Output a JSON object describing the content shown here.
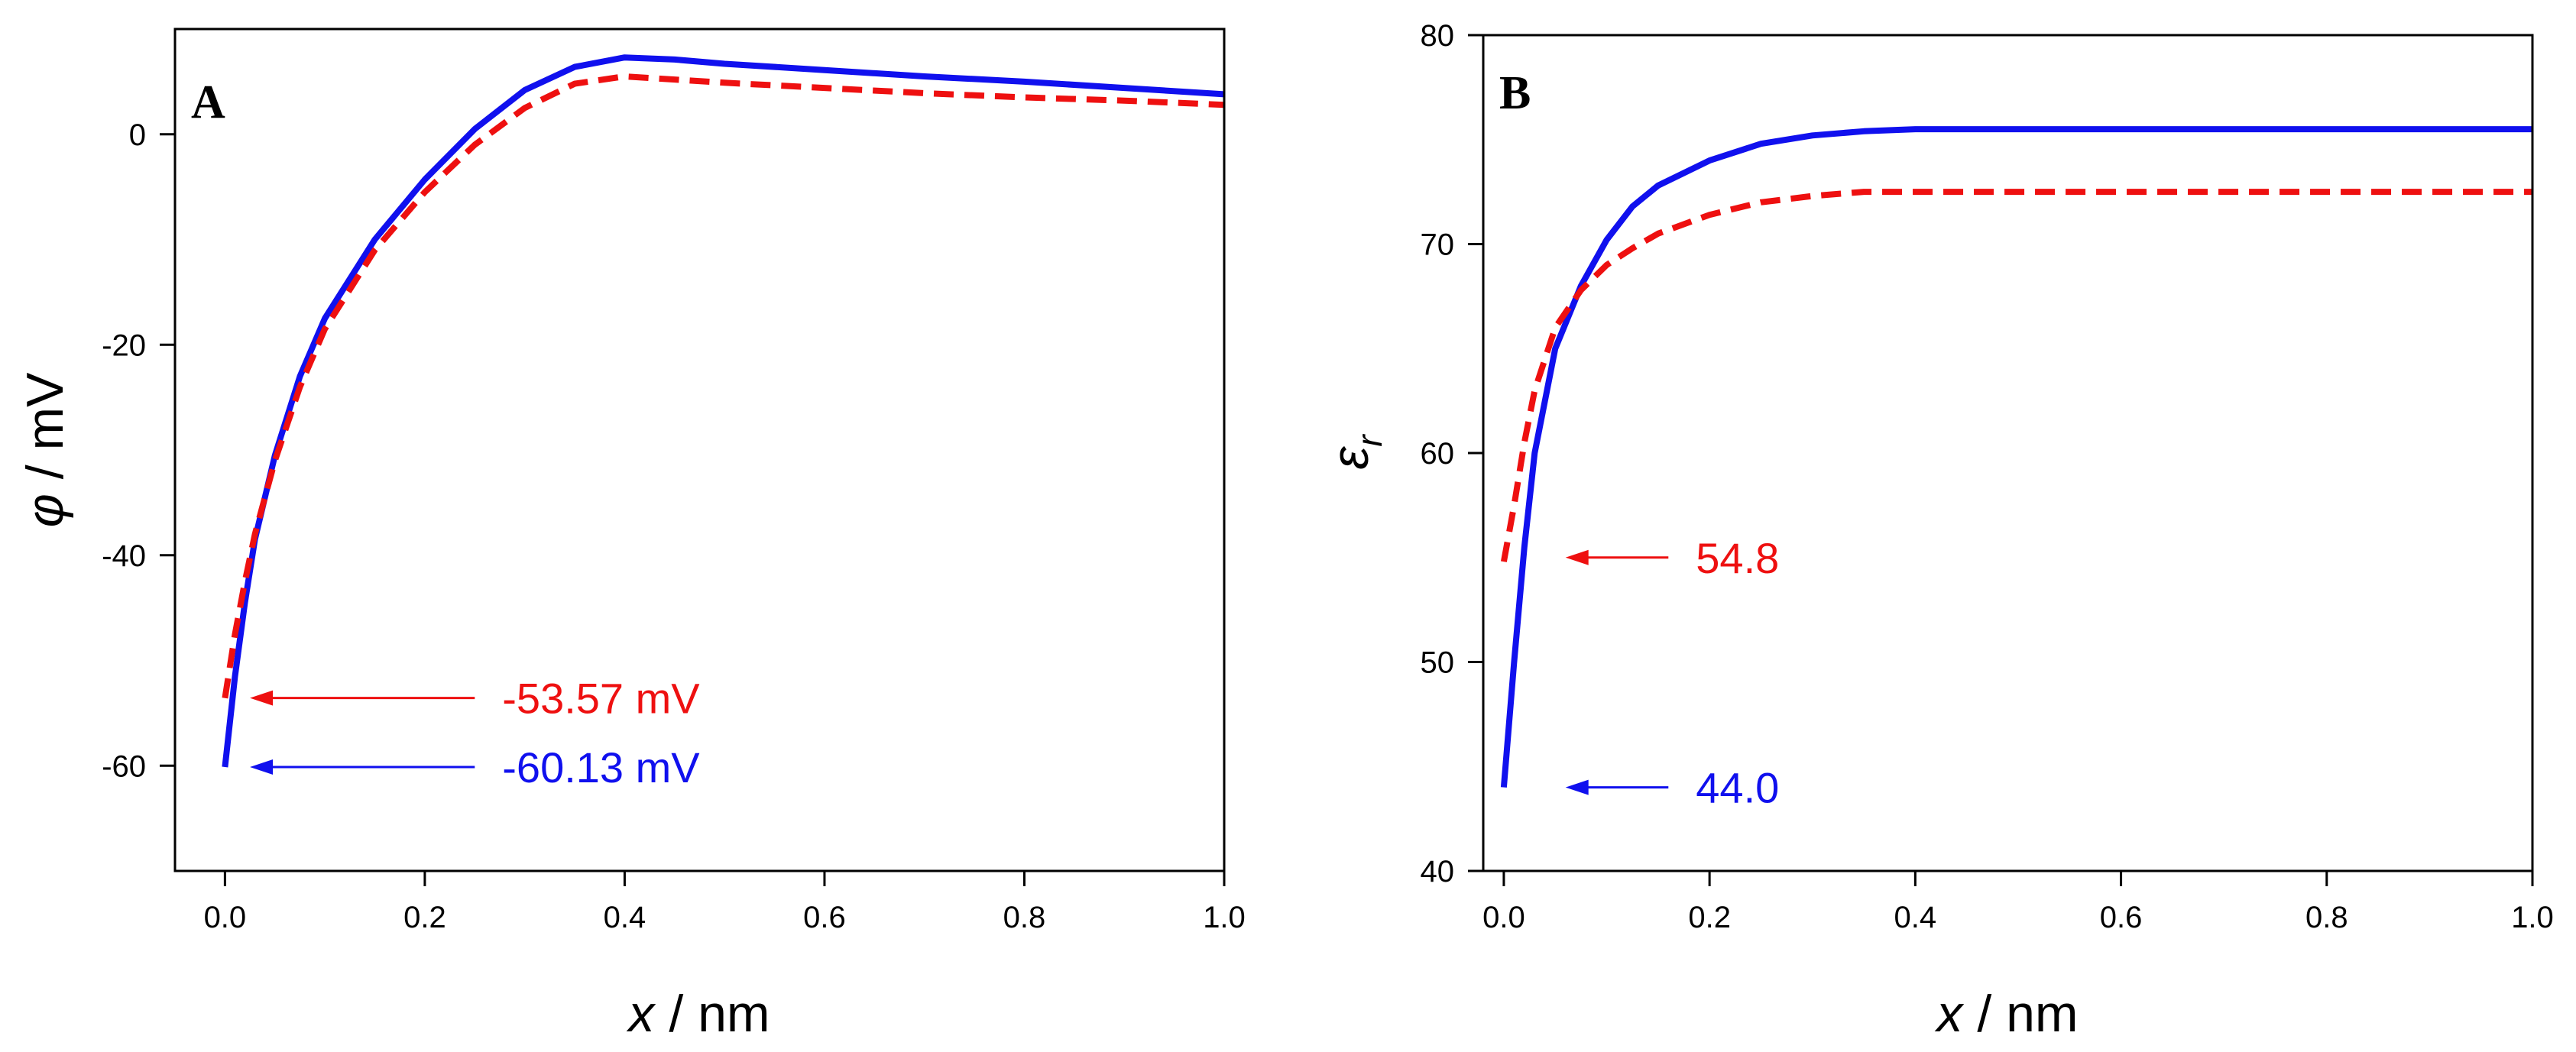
{
  "chart_data": [
    {
      "type": "line",
      "panel_label": "A",
      "xlabel_var": "x",
      "xlabel_unit": "/ nm",
      "ylabel_var": "φ",
      "ylabel_unit": "/ mV",
      "xlim": [
        -0.05,
        1.0
      ],
      "ylim": [
        -70,
        10
      ],
      "xticks": [
        0.0,
        0.2,
        0.4,
        0.6,
        0.8,
        1.0
      ],
      "xtick_labels": [
        "0.0",
        "0.2",
        "0.4",
        "0.6",
        "0.8",
        "1.0"
      ],
      "yticks": [
        -60,
        -40,
        -20,
        0
      ],
      "ytick_labels": [
        "-60",
        "-40",
        "-20",
        "0"
      ],
      "grid": false,
      "series": [
        {
          "color": "#1010ee",
          "dash": "solid",
          "x": [
            0.0,
            0.01,
            0.02,
            0.03,
            0.05,
            0.075,
            0.1,
            0.15,
            0.2,
            0.25,
            0.3,
            0.35,
            0.4,
            0.45,
            0.5,
            0.6,
            0.7,
            0.8,
            0.9,
            1.0
          ],
          "y": [
            -60.13,
            -51.5,
            -44.5,
            -38.5,
            -30.5,
            -23.0,
            -17.5,
            -10.0,
            -4.3,
            0.5,
            4.2,
            6.4,
            7.3,
            7.1,
            6.7,
            6.1,
            5.5,
            5.0,
            4.4,
            3.8
          ]
        },
        {
          "color": "#ee1010",
          "dash": "dashed",
          "x": [
            0.0,
            0.01,
            0.02,
            0.03,
            0.05,
            0.075,
            0.1,
            0.15,
            0.2,
            0.25,
            0.3,
            0.35,
            0.4,
            0.45,
            0.5,
            0.6,
            0.7,
            0.8,
            0.9,
            1.0
          ],
          "y": [
            -53.57,
            -47.5,
            -42.5,
            -38.0,
            -31.0,
            -24.0,
            -18.5,
            -11.0,
            -5.5,
            -1.0,
            2.5,
            4.8,
            5.5,
            5.2,
            4.9,
            4.4,
            3.9,
            3.5,
            3.2,
            2.8
          ]
        }
      ],
      "annotations": [
        {
          "text": "-53.57 mV",
          "color": "#ee1010",
          "x_from": 0.25,
          "x_to": 0.025,
          "y": -53.57,
          "text_x": 0.15
        },
        {
          "text": "-60.13 mV",
          "color": "#1010ee",
          "x_from": 0.25,
          "x_to": 0.025,
          "y": -60.13,
          "text_x": 0.15
        }
      ]
    },
    {
      "type": "line",
      "panel_label": "B",
      "xlabel_var": "x",
      "xlabel_unit": "/ nm",
      "ylabel_var": "ε",
      "ylabel_sub": "r",
      "xlim": [
        -0.02,
        1.0
      ],
      "ylim": [
        40,
        80
      ],
      "xticks": [
        0.0,
        0.2,
        0.4,
        0.6,
        0.8,
        1.0
      ],
      "xtick_labels": [
        "0.0",
        "0.2",
        "0.4",
        "0.6",
        "0.8",
        "1.0"
      ],
      "yticks": [
        40,
        50,
        60,
        70,
        80
      ],
      "ytick_labels": [
        "40",
        "50",
        "60",
        "70",
        "80"
      ],
      "grid": false,
      "series": [
        {
          "color": "#1010ee",
          "dash": "solid",
          "x": [
            0.0,
            0.01,
            0.02,
            0.03,
            0.05,
            0.075,
            0.1,
            0.125,
            0.15,
            0.2,
            0.25,
            0.3,
            0.35,
            0.4,
            0.5,
            0.6,
            0.7,
            0.8,
            0.9,
            1.0
          ],
          "y": [
            44.0,
            50.0,
            55.5,
            60.0,
            65.0,
            68.0,
            70.2,
            71.8,
            72.8,
            74.0,
            74.8,
            75.2,
            75.4,
            75.5,
            75.5,
            75.5,
            75.5,
            75.5,
            75.5,
            75.5
          ]
        },
        {
          "color": "#ee1010",
          "dash": "dashed",
          "x": [
            0.0,
            0.01,
            0.02,
            0.03,
            0.05,
            0.075,
            0.1,
            0.125,
            0.15,
            0.2,
            0.25,
            0.3,
            0.35,
            0.4,
            0.5,
            0.6,
            0.7,
            0.8,
            0.9,
            1.0
          ],
          "y": [
            54.8,
            57.5,
            60.5,
            63.0,
            66.0,
            67.8,
            69.0,
            69.8,
            70.5,
            71.4,
            72.0,
            72.3,
            72.5,
            72.5,
            72.5,
            72.5,
            72.5,
            72.5,
            72.5,
            72.5
          ]
        }
      ],
      "annotations": [
        {
          "text": "54.8",
          "color": "#ee1010",
          "x_from": 0.16,
          "x_to": 0.06,
          "y": 55.0,
          "text_x": 0.18
        },
        {
          "text": "44.0",
          "color": "#1010ee",
          "x_from": 0.16,
          "x_to": 0.06,
          "y": 44.0,
          "text_x": 0.18
        }
      ]
    }
  ]
}
